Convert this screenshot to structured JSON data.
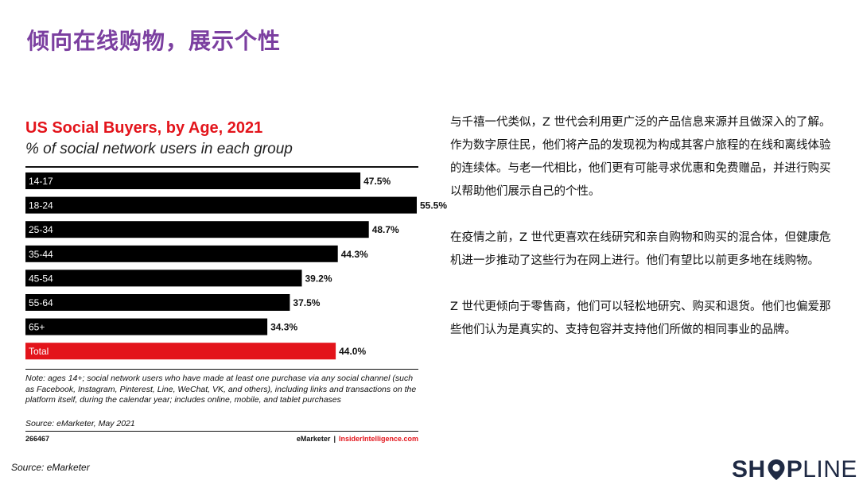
{
  "colors": {
    "title": "#7b3fa0",
    "bar": "#000000",
    "total_bar": "#e3141b",
    "chart_title": "#e3141b",
    "logo": "#1f2a44"
  },
  "slide": {
    "title": "倾向在线购物，展示个性"
  },
  "chart_data": {
    "type": "bar",
    "orientation": "horizontal",
    "title": "US Social Buyers, by Age, 2021",
    "subtitle": "% of social network users in each group",
    "categories": [
      "14-17",
      "18-24",
      "25-34",
      "35-44",
      "45-54",
      "55-64",
      "65+",
      "Total"
    ],
    "values": [
      47.5,
      55.5,
      48.7,
      44.3,
      39.2,
      37.5,
      34.3,
      44.0
    ],
    "value_labels": [
      "47.5%",
      "55.5%",
      "48.7%",
      "44.3%",
      "39.2%",
      "37.5%",
      "34.3%",
      "44.0%"
    ],
    "highlight_category": "Total",
    "xlim": [
      0,
      55.5
    ],
    "grid": false,
    "note": "Note: ages 14+; social network users who have made at least one purchase via any social channel (such as Facebook, Instagram, Pinterest, Line, WeChat, VK, and others), including links and transactions on the platform itself, during the calendar year; includes online, mobile, and tablet purchases",
    "source": "Source: eMarketer, May 2021",
    "id": "266467",
    "brand_left": "eMarketer",
    "brand_sep": "|",
    "brand_right": "InsiderIntelligence.com"
  },
  "body": {
    "paragraphs": [
      "与千禧一代类似，Z 世代会利用更广泛的产品信息来源并且做深入的了解。",
      "作为数字原住民，他们将产品的发现视为构成其客户旅程的在线和离线体验的连续体。与老一代相比，他们更有可能寻求优惠和免费赠品，并进行购买以帮助他们展示自己的个性。",
      "在疫情之前，Z 世代更喜欢在线研究和亲自购物和购买的混合体，但健康危机进一步推动了这些行为在网上进行。他们有望比以前更多地在线购物。",
      "Z 世代更倾向于零售商，他们可以轻松地研究、购买和退货。他们也偏爱那些他们认为是真实的、支持包容并支持他们所做的相同事业的品牌。"
    ]
  },
  "source_note": "Source: eMarketer",
  "logo": {
    "part1": "SH",
    "icon": "location-pin-icon",
    "part2": "P",
    "part3": "LINE"
  }
}
